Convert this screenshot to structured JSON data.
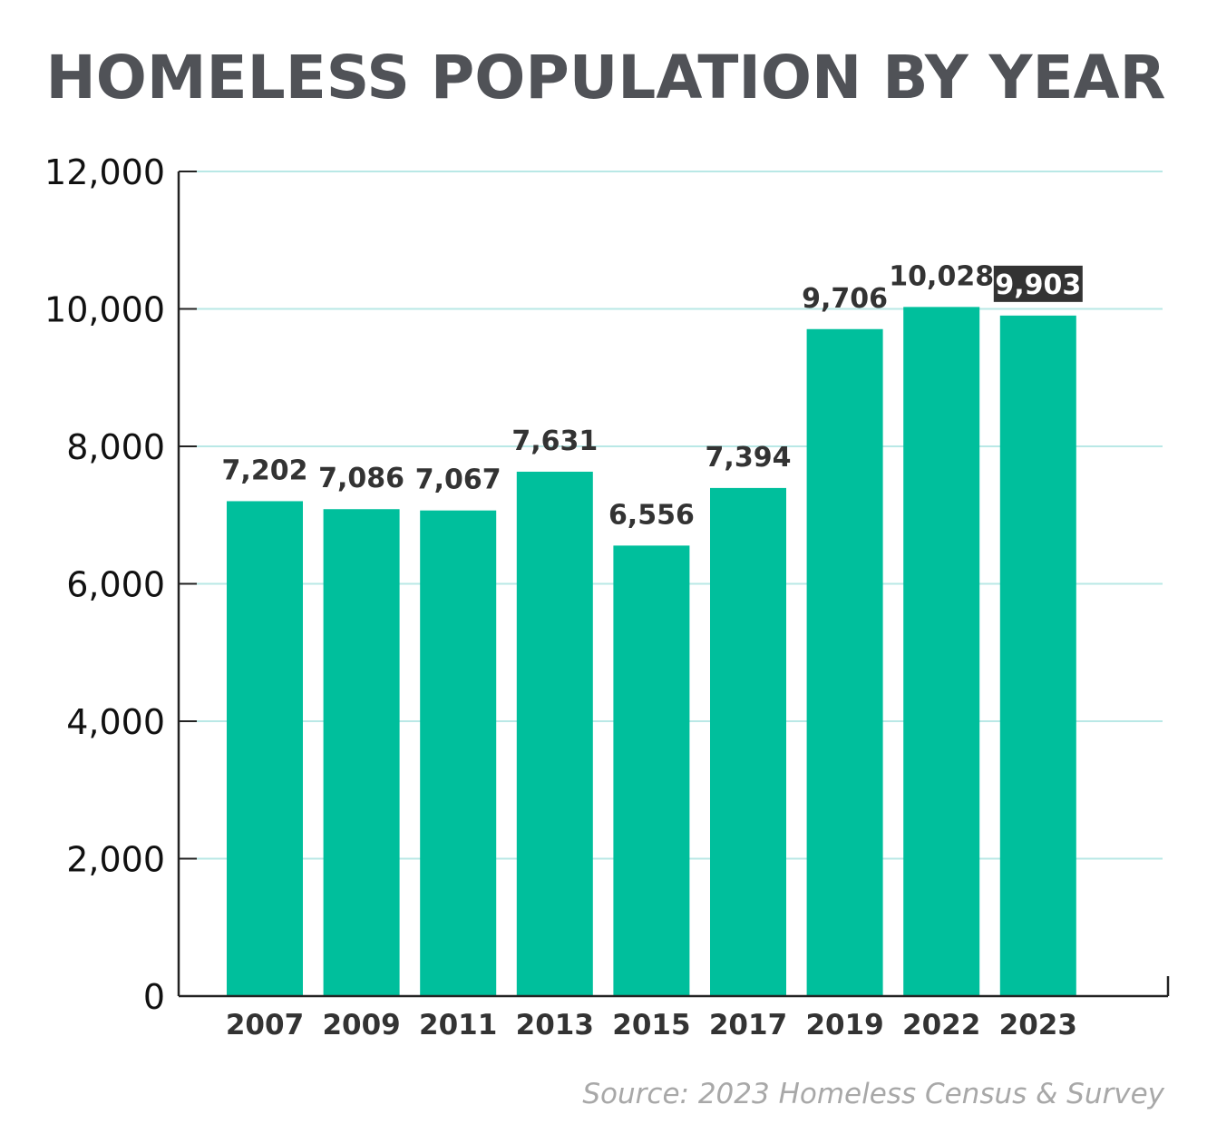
{
  "chart_data": {
    "type": "bar",
    "title": "HOMELESS POPULATION BY YEAR",
    "categories": [
      "2007",
      "2009",
      "2011",
      "2013",
      "2015",
      "2017",
      "2019",
      "2022",
      "2023"
    ],
    "values": [
      7202,
      7086,
      7067,
      7631,
      6556,
      7394,
      9706,
      10028,
      9903
    ],
    "value_labels": [
      "7,202",
      "7,086",
      "7,067",
      "7,631",
      "6,556",
      "7,394",
      "9,706",
      "10,028",
      "9,903"
    ],
    "highlighted_label_index": 8,
    "xlabel": "",
    "ylabel": "",
    "ylim": [
      0,
      12000
    ],
    "yticks": [
      0,
      2000,
      4000,
      6000,
      8000,
      10000,
      12000
    ],
    "ytick_labels": [
      "0",
      "2,000",
      "4,000",
      "6,000",
      "8,000",
      "10,000",
      "12,000"
    ],
    "grid": true,
    "legend": "none",
    "source": "Source: 2023 Homeless Census & Survey",
    "colors": {
      "bar": "#00bf9c",
      "grid": "#b9e8e6",
      "axis": "#222222",
      "title": "#505257",
      "label": "#333333",
      "highlight_bg": "#333333",
      "highlight_text": "#ffffff",
      "source": "#a8a8a8"
    }
  }
}
